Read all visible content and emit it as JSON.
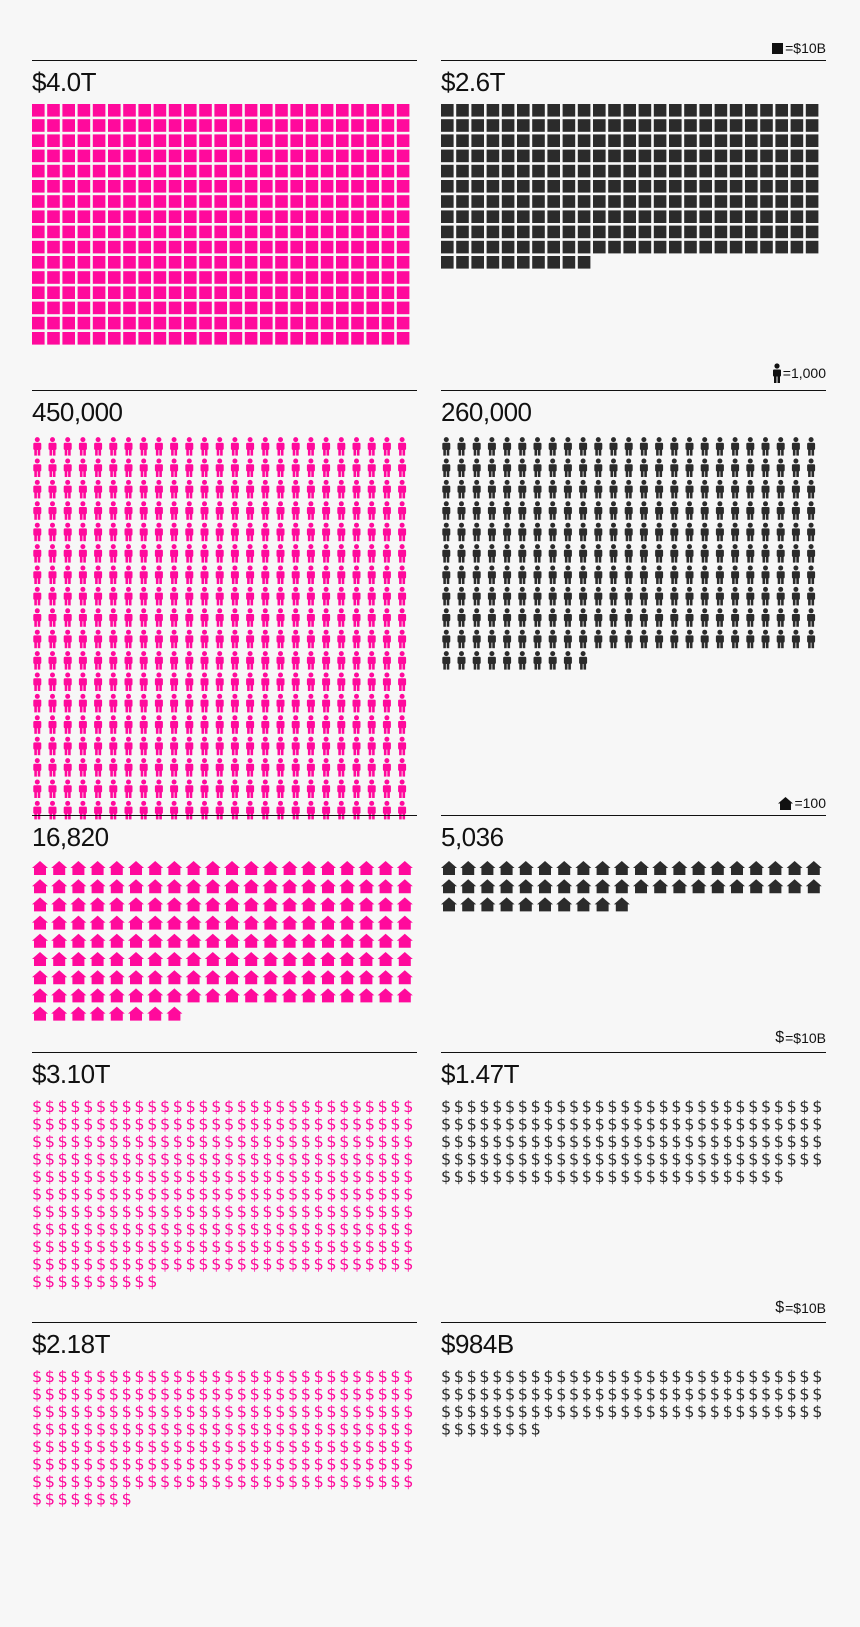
{
  "colors": {
    "accent": "#ff0a9c",
    "dark": "#2b2b2b",
    "text": "#111111",
    "background": "#f7f7f7"
  },
  "rows": [
    {
      "legend": {
        "icon": "square",
        "label": "=$10B"
      },
      "left": {
        "label": "$4.0T",
        "units": 400,
        "icon": "square"
      },
      "right": {
        "label": "$2.6T",
        "units": 260,
        "icon": "square"
      }
    },
    {
      "legend": {
        "icon": "person",
        "label": "=1,000"
      },
      "left": {
        "label": "450,000",
        "units": 450,
        "icon": "person"
      },
      "right": {
        "label": "260,000",
        "units": 260,
        "icon": "person"
      }
    },
    {
      "legend": {
        "icon": "house",
        "label": "=100"
      },
      "left": {
        "label": "16,820",
        "units": 168,
        "icon": "house"
      },
      "right": {
        "label": "5,036",
        "units": 50,
        "icon": "house"
      }
    },
    {
      "legend": {
        "icon": "dollar",
        "label": "=$10B"
      },
      "left": {
        "label": "$3.10T",
        "units": 310,
        "icon": "dollar"
      },
      "right": {
        "label": "$1.47T",
        "units": 147,
        "icon": "dollar"
      }
    },
    {
      "legend": {
        "icon": "dollar",
        "label": "=$10B"
      },
      "left": {
        "label": "$2.18T",
        "units": 218,
        "icon": "dollar"
      },
      "right": {
        "label": "$984B",
        "units": 98,
        "icon": "dollar"
      }
    }
  ],
  "chart_data": [
    {
      "type": "bar",
      "unit": "=$10B",
      "categories": [
        "left",
        "right"
      ],
      "labels": [
        "$4.0T",
        "$2.6T"
      ],
      "values": [
        4000,
        2600
      ]
    },
    {
      "type": "bar",
      "unit": "=1,000",
      "categories": [
        "left",
        "right"
      ],
      "labels": [
        "450,000",
        "260,000"
      ],
      "values": [
        450000,
        260000
      ]
    },
    {
      "type": "bar",
      "unit": "=100",
      "categories": [
        "left",
        "right"
      ],
      "labels": [
        "16,820",
        "5,036"
      ],
      "values": [
        16820,
        5036
      ]
    },
    {
      "type": "bar",
      "unit": "=$10B",
      "categories": [
        "left",
        "right"
      ],
      "labels": [
        "$3.10T",
        "$1.47T"
      ],
      "values": [
        3100,
        1470
      ]
    },
    {
      "type": "bar",
      "unit": "=$10B",
      "categories": [
        "left",
        "right"
      ],
      "labels": [
        "$2.18T",
        "$984B"
      ],
      "values": [
        2180,
        984
      ]
    }
  ]
}
